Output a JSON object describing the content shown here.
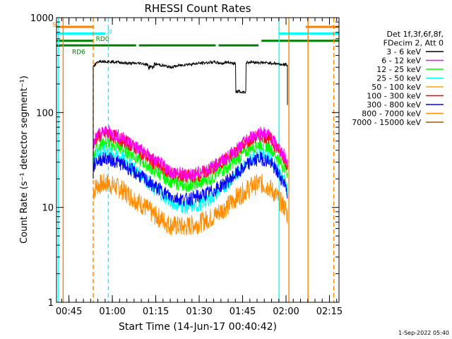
{
  "chart_data": {
    "type": "line",
    "title": "RHESSI Count Rates",
    "xlabel": "Start Time (14-Jun-17 00:40:42)",
    "ylabel": "Count Rate (s⁻¹ detector segment⁻¹)",
    "yscale": "log",
    "ylim": [
      1,
      1000
    ],
    "xlim_minutes": [
      40.7,
      138.3
    ],
    "y_ticks": [
      {
        "label": "1",
        "value": 1
      },
      {
        "label": "10",
        "value": 10
      },
      {
        "label": "100",
        "value": 100
      },
      {
        "label": "1000",
        "value": 1000
      }
    ],
    "x_ticks": [
      {
        "label": "00:45",
        "minutes": 45
      },
      {
        "label": "01:00",
        "minutes": 60
      },
      {
        "label": "01:15",
        "minutes": 75
      },
      {
        "label": "01:30",
        "minutes": 90
      },
      {
        "label": "01:45",
        "minutes": 105
      },
      {
        "label": "02:00",
        "minutes": 120
      },
      {
        "label": "02:15",
        "minutes": 135
      }
    ],
    "legend_header": [
      "Det 1f,3f,6f,8f,",
      "FDecim 2, Att 0"
    ],
    "legend_position": "right",
    "series": [
      {
        "name": "3 - 6 keV",
        "color": "#000000",
        "x": [
          53.4,
          54.5,
          55.5,
          62,
          65,
          70,
          72,
          74,
          76,
          80,
          85,
          90,
          95,
          98,
          100,
          102,
          108,
          112,
          116,
          119,
          120.5
        ],
        "values": [
          300,
          330,
          350,
          340,
          330,
          330,
          320,
          325,
          320,
          300,
          320,
          330,
          340,
          330,
          340,
          330,
          340,
          335,
          330,
          320,
          320
        ]
      },
      {
        "name": "6 - 12 keV",
        "color": "#ff00ff",
        "x": [
          53.4,
          54.5,
          58,
          63,
          68,
          74,
          80,
          85,
          90,
          95,
          100,
          104,
          108,
          111,
          114,
          116,
          118,
          120,
          120.5
        ],
        "values": [
          42,
          58,
          63,
          55,
          44,
          32,
          24,
          22,
          23,
          27,
          34,
          43,
          55,
          62,
          58,
          48,
          40,
          33,
          28
        ]
      },
      {
        "name": "12 - 25 keV",
        "color": "#00ff00",
        "x": [
          53.4,
          54.5,
          58,
          63,
          68,
          74,
          80,
          85,
          90,
          95,
          100,
          104,
          108,
          111,
          114,
          116,
          118,
          120,
          120.5
        ],
        "values": [
          33,
          44,
          48,
          42,
          34,
          25,
          19,
          17,
          18,
          21,
          27,
          34,
          43,
          47,
          44,
          37,
          30,
          26,
          23
        ]
      },
      {
        "name": "25 - 50 keV",
        "color": "#00ffff",
        "x": [
          53.4,
          54.5,
          58,
          63,
          68,
          74,
          80,
          85,
          90,
          95,
          100,
          104,
          108,
          111,
          114,
          116,
          118,
          120,
          120.5
        ],
        "values": [
          28,
          37,
          40,
          34,
          25,
          16,
          11.5,
          10,
          10.5,
          13,
          18,
          24,
          33,
          37,
          34,
          28,
          22,
          18,
          15
        ]
      },
      {
        "name": "50 - 100 keV",
        "color": "#ffa500",
        "x": [],
        "values": []
      },
      {
        "name": "100 - 300 keV",
        "color": "#ff0000",
        "x": [
          53.4,
          54.5,
          58,
          63,
          68,
          74,
          80,
          85,
          90,
          95,
          100,
          104,
          108,
          111,
          114,
          116,
          118,
          120,
          120.5
        ],
        "values": [
          43,
          55,
          60,
          52,
          42,
          30,
          23,
          21,
          22,
          26,
          33,
          42,
          52,
          58,
          55,
          46,
          38,
          31,
          27
        ]
      },
      {
        "name": "300 - 800 keV",
        "color": "#0000ff",
        "x": [
          53.4,
          54.5,
          58,
          63,
          68,
          74,
          80,
          85,
          90,
          95,
          100,
          104,
          108,
          111,
          114,
          116,
          118,
          120,
          120.5
        ],
        "values": [
          26,
          31,
          33,
          29,
          23,
          17,
          13,
          12,
          13,
          15,
          19,
          24,
          30,
          33,
          31,
          26,
          21,
          17,
          14
        ]
      },
      {
        "name": "800 - 7000 keV",
        "color": "#ff8c00",
        "x": [
          53.4,
          54.5,
          58,
          63,
          68,
          74,
          80,
          85,
          90,
          95,
          100,
          104,
          108,
          111,
          114,
          116,
          118,
          120,
          120.5
        ],
        "values": [
          14,
          17,
          18,
          15.5,
          12,
          8.5,
          6.5,
          6.2,
          6.8,
          8,
          10.5,
          13.5,
          16.5,
          18,
          16.5,
          14,
          11.5,
          9.5,
          8
        ]
      },
      {
        "name": "7000 - 15000 keV",
        "color": "#9c5a00",
        "x": [],
        "values": []
      }
    ],
    "annotations": {
      "flags": [
        {
          "label": "S",
          "color": "#ff8000",
          "level": 800,
          "segments": [
            [
              40.7,
              53.3
            ],
            [
              126.8,
              138.3
            ]
          ]
        },
        {
          "label": "N",
          "color": "#00ffff",
          "level": 680,
          "segments": [
            [
              40.7,
              57.5
            ],
            [
              117.7,
              138.3
            ]
          ]
        },
        {
          "label": "RD0",
          "color": "#008000",
          "level": 570,
          "segments": [
            [
              40.7,
              53.3
            ],
            [
              111.5,
              138.3
            ]
          ]
        },
        {
          "label": "RD6",
          "color": "#008000",
          "level": 510,
          "segments": [
            [
              40.7,
              68.2
            ],
            [
              69.2,
              95.7
            ],
            [
              96.7,
              110.5
            ]
          ]
        }
      ],
      "vlines": [
        {
          "minutes": 41.4,
          "color": "#00ffff",
          "style": "solid"
        },
        {
          "minutes": 43.0,
          "color": "#ff8000",
          "style": "solid"
        },
        {
          "minutes": 53.4,
          "color": "#ff8000",
          "style": "dashed"
        },
        {
          "minutes": 58.6,
          "color": "#00ffff",
          "style": "dashed"
        },
        {
          "minutes": 117.6,
          "color": "#00ffff",
          "style": "solid"
        },
        {
          "minutes": 121.0,
          "color": "#ff8000",
          "style": "solid"
        },
        {
          "minutes": 127.6,
          "color": "#ff8000",
          "style": "solid"
        },
        {
          "minutes": 136.5,
          "color": "#ff8000",
          "style": "dashed"
        }
      ]
    },
    "timestamp": "1-Sep-2022 05:40"
  }
}
